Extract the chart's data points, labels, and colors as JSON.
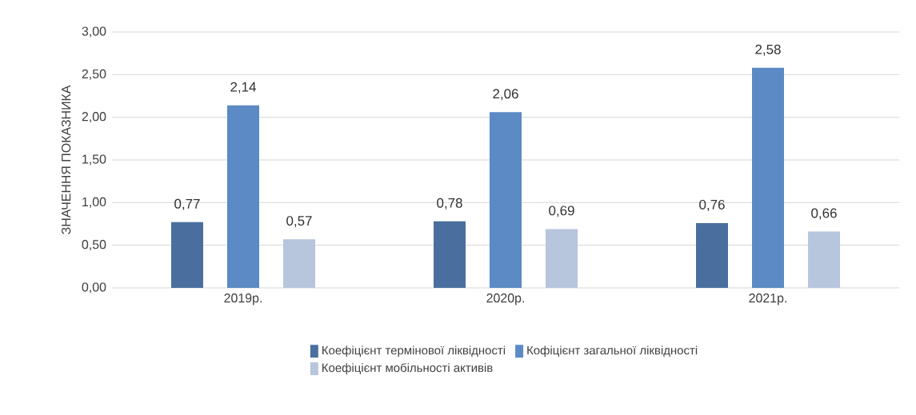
{
  "chart_data": {
    "type": "bar",
    "ylabel": "ЗНАЧЕННЯ ПОКАЗНИКА",
    "categories": [
      "2019р.",
      "2020р.",
      "2021р."
    ],
    "series": [
      {
        "name": "Коефіцієнт термінової ліквідності",
        "color": "#4a6f9e",
        "values": [
          0.77,
          0.78,
          0.76
        ],
        "value_labels": [
          "0,77",
          "0,78",
          "0,76"
        ]
      },
      {
        "name": "Кофіцієнт загальної ліквідності",
        "color": "#5b8ac4",
        "values": [
          2.14,
          2.06,
          2.58
        ],
        "value_labels": [
          "2,14",
          "2,06",
          "2,58"
        ]
      },
      {
        "name": "Коефіцієнт мобільності активів",
        "color": "#b7c5dd",
        "values": [
          0.57,
          0.69,
          0.66
        ],
        "value_labels": [
          "0,57",
          "0,69",
          "0,66"
        ]
      }
    ],
    "ylim": [
      0,
      3
    ],
    "yticks": [
      {
        "value": 0,
        "label": "0,00"
      },
      {
        "value": 0.5,
        "label": "0,50"
      },
      {
        "value": 1,
        "label": "1,00"
      },
      {
        "value": 1.5,
        "label": "1,50"
      },
      {
        "value": 2,
        "label": "2,00"
      },
      {
        "value": 2.5,
        "label": "2,50"
      },
      {
        "value": 3,
        "label": "3,00"
      }
    ],
    "grid": "y",
    "legend": "bottom"
  }
}
